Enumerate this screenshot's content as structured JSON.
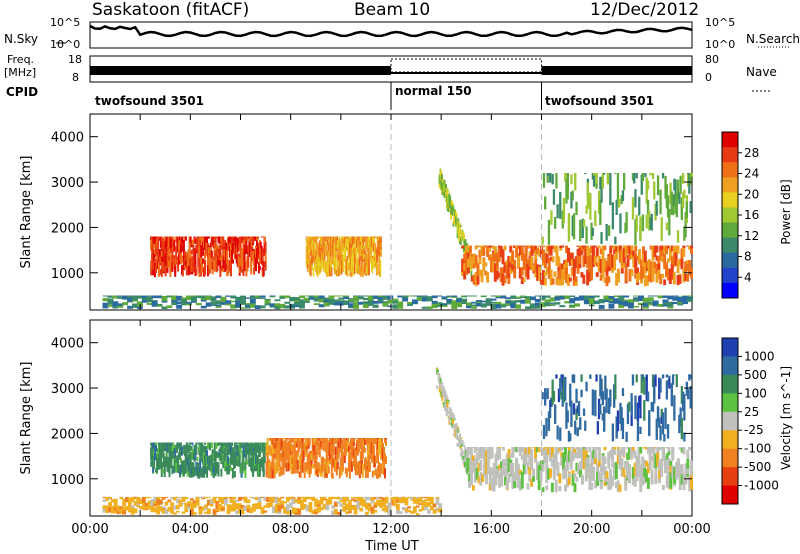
{
  "header": {
    "station": "Saskatoon (fitACF)",
    "beam": "Beam 10",
    "date": "12/Dec/2012"
  },
  "top_panels": {
    "nsky_label": "N.Sky",
    "nsearch_label": "N.Search",
    "noise_ticks_left": [
      "10^5",
      "10^0"
    ],
    "noise_ticks_right": [
      "10^5",
      "10^0"
    ],
    "freq_label_1": "Freq.",
    "freq_label_2": "[MHz]",
    "freq_ticks": [
      "18",
      "8"
    ],
    "nave_label": "Nave",
    "nave_ticks": [
      "80",
      "0"
    ],
    "cpid_label": "CPID",
    "cpid_segments": [
      "twofsound 3501",
      "normal 150",
      "twofsound 3501"
    ]
  },
  "chart_data": [
    {
      "type": "heatmap",
      "panel": "power",
      "ylabel": "Slant Range [km]",
      "yticks": [
        "1000",
        "2000",
        "3000",
        "4000"
      ],
      "ylim": [
        180,
        4500
      ],
      "xlim": [
        0,
        24
      ],
      "colorbar_label": "Power [dB]",
      "colorbar_ticks": [
        "4",
        "8",
        "12",
        "16",
        "20",
        "24",
        "28"
      ],
      "colorbar_colors": [
        "#0000ff",
        "#2244cc",
        "#2a6aa0",
        "#3a8a6a",
        "#5faa3a",
        "#9fc832",
        "#e8d020",
        "#f0a020",
        "#f07018",
        "#e83a14",
        "#e00000"
      ],
      "features": [
        {
          "desc": "band",
          "x": [
            2.4,
            7.0
          ],
          "range_km": [
            900,
            1800
          ],
          "power_db": 26
        },
        {
          "desc": "band",
          "x": [
            8.6,
            11.6
          ],
          "range_km": [
            900,
            1800
          ],
          "power_db": 20
        },
        {
          "desc": "arc",
          "x": [
            13.9,
            15.2
          ],
          "range_km": [
            1100,
            3100
          ],
          "power_db": 14
        },
        {
          "desc": "band",
          "x": [
            14.8,
            24.0
          ],
          "range_km": [
            700,
            1600
          ],
          "power_db": 24
        },
        {
          "desc": "scatter",
          "x": [
            18.0,
            24.0
          ],
          "range_km": [
            1600,
            3200
          ],
          "power_db": 12
        },
        {
          "desc": "ground",
          "x": [
            0.5,
            24.0
          ],
          "range_km": [
            200,
            500
          ],
          "power_db": 10
        }
      ]
    },
    {
      "type": "heatmap",
      "panel": "velocity",
      "ylabel": "Slant Range [km]",
      "yticks": [
        "1000",
        "2000",
        "3000",
        "4000"
      ],
      "ylim": [
        180,
        4500
      ],
      "xlim": [
        0,
        24
      ],
      "colorbar_label": "Velocity [m s^-1]",
      "colorbar_ticks": [
        "1000",
        "500",
        "100",
        "25",
        "-25",
        "-100",
        "-500",
        "-1000"
      ],
      "colorbar_colors": [
        "#2040b0",
        "#2f6aa0",
        "#3a8a5a",
        "#5cc040",
        "#c0c0bc",
        "#f0b020",
        "#f08020",
        "#e84010",
        "#e00000"
      ],
      "features": [
        {
          "desc": "band",
          "x": [
            2.4,
            7.0
          ],
          "range_km": [
            1000,
            1800
          ],
          "velocity": 250
        },
        {
          "desc": "band",
          "x": [
            7.0,
            11.8
          ],
          "range_km": [
            1000,
            1900
          ],
          "velocity": -400
        },
        {
          "desc": "arc",
          "x": [
            13.8,
            15.2
          ],
          "range_km": [
            1000,
            3200
          ],
          "velocity": 0
        },
        {
          "desc": "band",
          "x": [
            15.0,
            24.0
          ],
          "range_km": [
            700,
            1700
          ],
          "velocity": 0
        },
        {
          "desc": "scatter",
          "x": [
            18.0,
            24.0
          ],
          "range_km": [
            1800,
            3300
          ],
          "velocity": 500
        },
        {
          "desc": "ground",
          "x": [
            0.5,
            14.0
          ],
          "range_km": [
            200,
            600
          ],
          "velocity": -80
        }
      ],
      "xlabel": "Time UT",
      "xticks": [
        "00:00",
        "04:00",
        "08:00",
        "12:00",
        "16:00",
        "20:00",
        "00:00"
      ]
    }
  ]
}
